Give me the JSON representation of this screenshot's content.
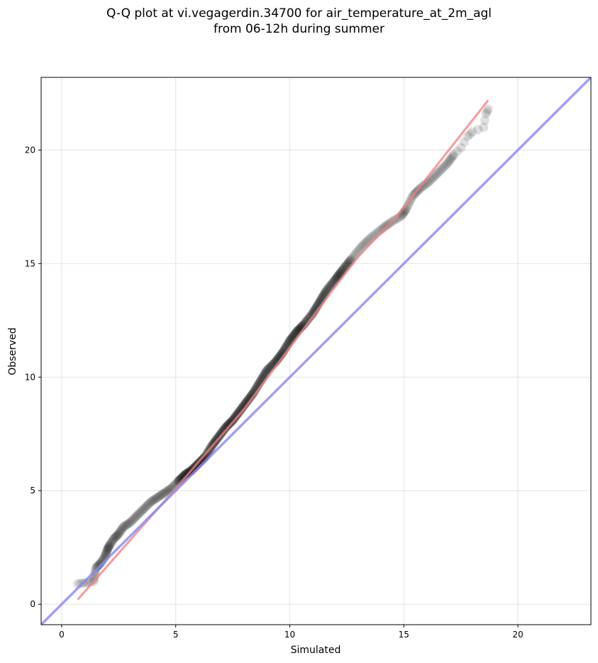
{
  "chart_data": {
    "type": "scatter",
    "title": [
      "Q-Q plot at vi.vegagerdin.34700 for air_temperature_at_2m_agl",
      "from 06-12h during summer"
    ],
    "xlabel": "Simulated",
    "ylabel": "Observed",
    "xlim": [
      -0.9,
      23.2
    ],
    "ylim": [
      -0.9,
      23.2
    ],
    "xticks": [
      0,
      5,
      10,
      15,
      20
    ],
    "yticks": [
      0,
      5,
      10,
      15,
      20
    ],
    "grid": true,
    "series": [
      {
        "kind": "quantile points",
        "color": "#000000",
        "points": [
          [
            0.7,
            0.9
          ],
          [
            1.4,
            1.0
          ],
          [
            1.5,
            1.6
          ],
          [
            1.7,
            1.8
          ],
          [
            1.9,
            2.1
          ],
          [
            2.0,
            2.4
          ],
          [
            2.1,
            2.6
          ],
          [
            2.3,
            2.9
          ],
          [
            2.5,
            3.1
          ],
          [
            2.7,
            3.4
          ],
          [
            3.0,
            3.6
          ],
          [
            3.3,
            3.9
          ],
          [
            3.6,
            4.2
          ],
          [
            3.9,
            4.5
          ],
          [
            4.2,
            4.7
          ],
          [
            4.5,
            4.9
          ],
          [
            4.8,
            5.1
          ],
          [
            5.1,
            5.4
          ],
          [
            5.4,
            5.7
          ],
          [
            5.7,
            5.9
          ],
          [
            6.0,
            6.2
          ],
          [
            6.3,
            6.5
          ],
          [
            6.6,
            7.0
          ],
          [
            6.9,
            7.4
          ],
          [
            7.2,
            7.8
          ],
          [
            7.5,
            8.1
          ],
          [
            7.8,
            8.5
          ],
          [
            8.1,
            8.9
          ],
          [
            8.4,
            9.3
          ],
          [
            8.7,
            9.8
          ],
          [
            9.0,
            10.3
          ],
          [
            9.4,
            10.7
          ],
          [
            9.7,
            11.1
          ],
          [
            10.0,
            11.6
          ],
          [
            10.3,
            12.0
          ],
          [
            10.6,
            12.3
          ],
          [
            11.0,
            12.8
          ],
          [
            11.3,
            13.3
          ],
          [
            11.6,
            13.8
          ],
          [
            12.0,
            14.3
          ],
          [
            12.3,
            14.7
          ],
          [
            12.7,
            15.2
          ],
          [
            13.1,
            15.7
          ],
          [
            13.5,
            16.1
          ],
          [
            14.0,
            16.5
          ],
          [
            14.4,
            16.8
          ],
          [
            14.9,
            17.1
          ],
          [
            15.1,
            17.4
          ],
          [
            15.4,
            18.0
          ],
          [
            15.7,
            18.3
          ],
          [
            16.1,
            18.6
          ],
          [
            16.5,
            19.0
          ],
          [
            16.9,
            19.4
          ],
          [
            17.2,
            19.8
          ],
          [
            17.5,
            20.1
          ],
          [
            17.8,
            20.6
          ],
          [
            18.0,
            20.8
          ],
          [
            18.5,
            21.0
          ],
          [
            18.6,
            21.6
          ],
          [
            18.7,
            21.8
          ]
        ]
      },
      {
        "kind": "fitted line",
        "color": "#f08080",
        "points": [
          [
            0.7,
            0.2
          ],
          [
            5.0,
            5.1
          ],
          [
            8.0,
            8.6
          ],
          [
            12.0,
            14.0
          ],
          [
            13.0,
            15.3
          ],
          [
            14.7,
            17.1
          ],
          [
            18.7,
            22.2
          ]
        ]
      },
      {
        "kind": "1:1 reference line",
        "color": "#8888ee",
        "points": [
          [
            -0.9,
            -0.9
          ],
          [
            23.2,
            23.2
          ]
        ]
      }
    ]
  }
}
